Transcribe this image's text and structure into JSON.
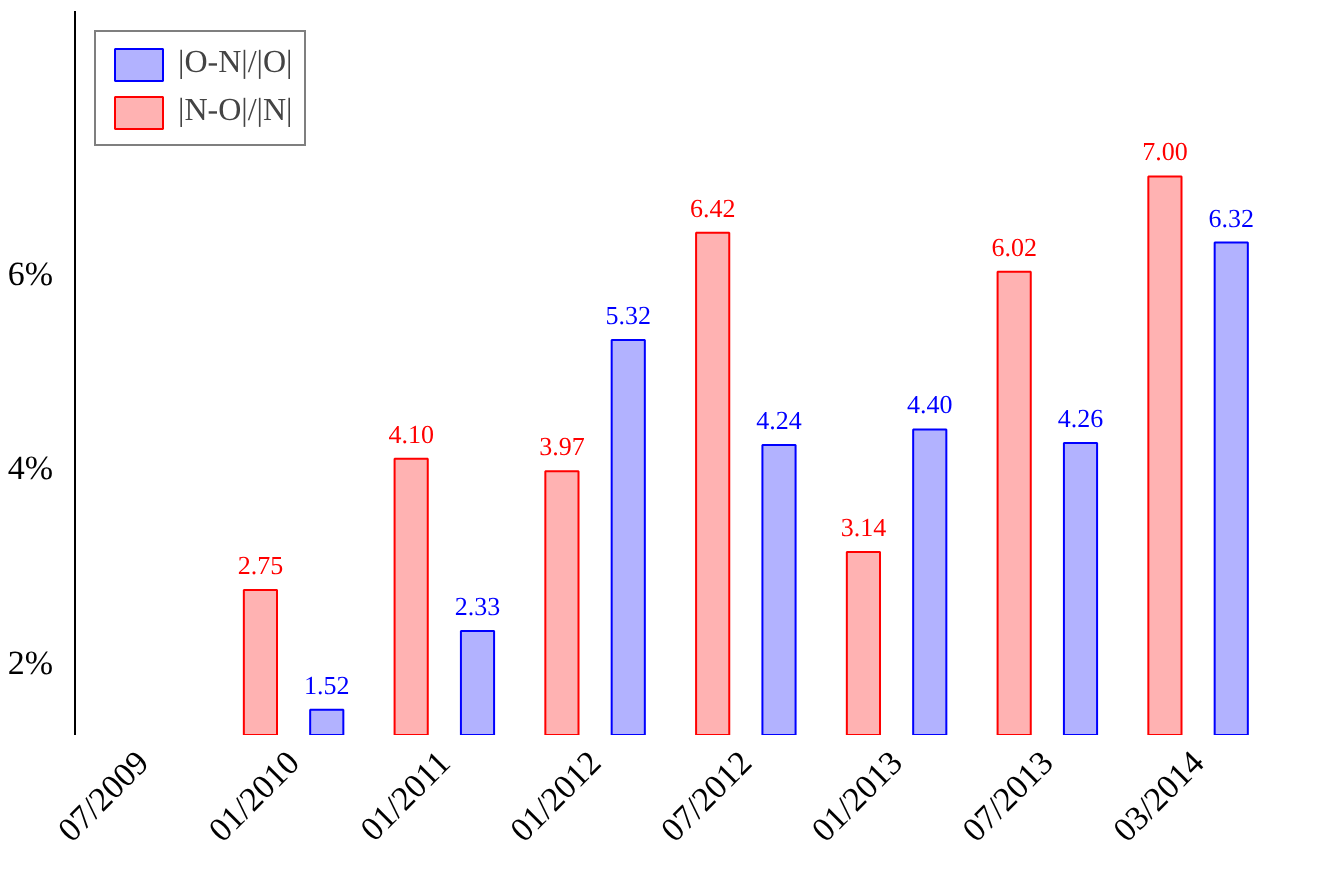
{
  "chart_data": {
    "type": "bar",
    "ylim": [
      1.26,
      8.7
    ],
    "categories": [
      "07/2009",
      "01/2010",
      "01/2011",
      "01/2012",
      "07/2012",
      "01/2013",
      "07/2013",
      "03/2014"
    ],
    "yticks": [
      {
        "value": 2,
        "label": "2%"
      },
      {
        "value": 4,
        "label": "4%"
      },
      {
        "value": 6,
        "label": "6%"
      }
    ],
    "series": [
      {
        "name": "|O-N|/|O|",
        "color": "#0000ff",
        "values": [
          null,
          1.52,
          2.33,
          5.32,
          4.24,
          4.4,
          4.26,
          6.32
        ],
        "value_labels": [
          null,
          "1.52",
          "2.33",
          "5.32",
          "4.24",
          "4.40",
          "4.26",
          "6.32"
        ]
      },
      {
        "name": "|N-O|/|N|",
        "color": "#ff0000",
        "values": [
          null,
          2.75,
          4.1,
          3.97,
          6.42,
          3.14,
          6.02,
          7.0
        ],
        "value_labels": [
          null,
          "2.75",
          "4.10",
          "3.97",
          "6.42",
          "3.14",
          "6.02",
          "7.00"
        ]
      }
    ],
    "legend": "top left",
    "grid": false
  }
}
